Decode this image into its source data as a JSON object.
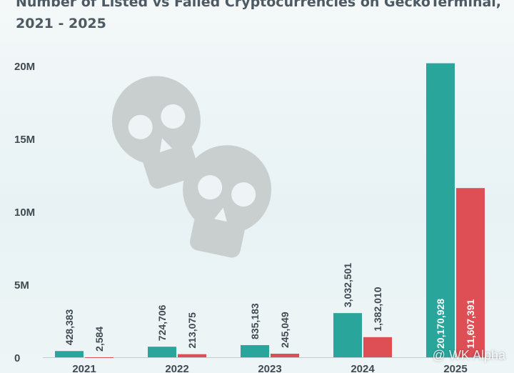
{
  "title_line1": "Number of Listed vs Failed Cryptocurrencies on GeckoTerminal,",
  "title_line2": "2021 - 2025",
  "watermark": "@ WK Alpha",
  "colors": {
    "listed": "#2aa59c",
    "failed": "#de4e55",
    "skull": "#c9cfcf"
  },
  "chart_data": {
    "type": "bar",
    "categories": [
      "2021",
      "2022",
      "2023",
      "2024",
      "2025"
    ],
    "series": [
      {
        "values": [
          428383,
          724706,
          835183,
          3032501,
          20170928
        ],
        "labels": [
          "428,383",
          "724,706",
          "835,183",
          "3,032,501",
          "20,170,928"
        ]
      },
      {
        "values": [
          2584,
          213075,
          245049,
          1382010,
          11607391
        ],
        "labels": [
          "2,584",
          "213,075",
          "245,049",
          "1,382,010",
          "11,607,391"
        ]
      }
    ],
    "yticks": [
      0,
      5000000,
      10000000,
      15000000,
      20000000
    ],
    "ytick_labels": [
      "0",
      "5M",
      "10M",
      "15M",
      "20M"
    ],
    "ylim": [
      0,
      20500000
    ],
    "grid": false,
    "legend": "none"
  }
}
